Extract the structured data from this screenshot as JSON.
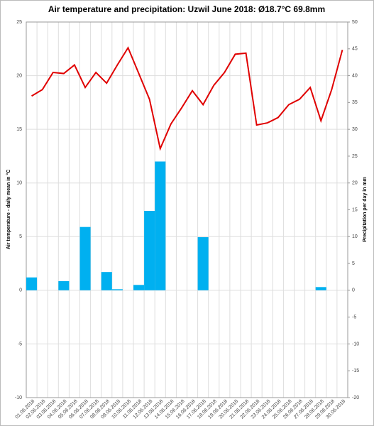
{
  "chart_data": {
    "type": "combo",
    "title": "Air temperature and precipitation: Uzwil June 2018: Ø18.7°C 69.8mm",
    "y_label": "Air temperature - daily mean in °C",
    "y2_label": "Precipitation per day in mm",
    "categories": [
      "01.06.2018",
      "02.06.2018",
      "03.06.2018",
      "04.06.2018",
      "05.06.2018",
      "06.06.2018",
      "07.06.2018",
      "08.06.2018",
      "09.06.2018",
      "10.06.2018",
      "11.06.2018",
      "12.06.2018",
      "13.06.2018",
      "14.06.2018",
      "15.06.2018",
      "16.06.2018",
      "17.06.2018",
      "18.06.2018",
      "19.06.2018",
      "20.06.2018",
      "21.06.2018",
      "22.06.2018",
      "23.06.2018",
      "24.06.2018",
      "25.06.2018",
      "26.06.2018",
      "27.06.2018",
      "28.06.2018",
      "29.06.2018",
      "30.06.2018"
    ],
    "series": [
      {
        "name": "Precipitation",
        "type": "bar",
        "axis": "y2",
        "color": "#00b0f0",
        "values": [
          2.4,
          0,
          0,
          1.7,
          0,
          11.8,
          0,
          3.4,
          0.2,
          0,
          1.0,
          14.8,
          24.0,
          0,
          0,
          0,
          9.9,
          0,
          0,
          0,
          0,
          0,
          0,
          0,
          0,
          0,
          0,
          0.6,
          0,
          0
        ]
      },
      {
        "name": "Air temperature",
        "type": "line",
        "axis": "y",
        "color": "#e00000",
        "values": [
          18.1,
          18.7,
          20.3,
          20.2,
          21.0,
          18.9,
          20.3,
          19.3,
          21.0,
          22.6,
          20.2,
          17.8,
          13.2,
          15.5,
          17.0,
          18.6,
          17.3,
          19.1,
          20.3,
          22.0,
          22.1,
          15.4,
          15.6,
          16.1,
          17.3,
          17.8,
          18.9,
          15.8,
          18.7,
          22.4
        ]
      }
    ],
    "ylim": [
      -10,
      25
    ],
    "yticks": [
      -10,
      -5,
      0,
      5,
      10,
      15,
      20,
      25
    ],
    "y2lim": [
      -20,
      50
    ],
    "y2ticks": [
      -20,
      -15,
      -10,
      -5,
      0,
      5,
      10,
      15,
      20,
      25,
      30,
      35,
      40,
      45,
      50
    ],
    "grid": true
  }
}
